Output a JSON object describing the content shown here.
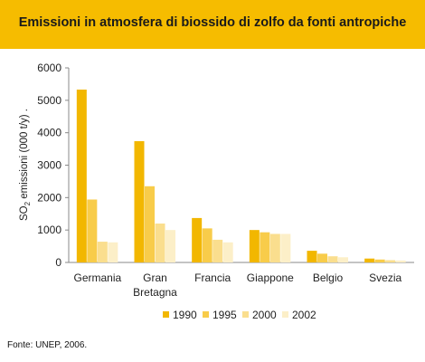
{
  "header": {
    "title": "Emissioni in atmosfera di biossido di zolfo da fonti antropiche",
    "bg_color": "#F6BC00"
  },
  "footer": {
    "source": "Fonte: UNEP, 2006."
  },
  "chart_data": {
    "type": "bar",
    "title": "",
    "ylabel": "SO2 emissioni (000 t/y) .",
    "ylabel_main": "SO",
    "ylabel_sub": "2",
    "ylabel_rest": " emissioni (000 t/y) .",
    "ylim": [
      0,
      6000
    ],
    "yticks": [
      0,
      1000,
      2000,
      3000,
      4000,
      5000,
      6000
    ],
    "ytick_labels": [
      "0",
      "1000",
      "2000",
      "3000",
      "4000",
      "5000",
      "6000"
    ],
    "grid": false,
    "legend_position": "bottom",
    "categories": [
      [
        "Germania"
      ],
      [
        "Gran",
        "Bretagna"
      ],
      [
        "Francia"
      ],
      [
        "Giappone"
      ],
      [
        "Belgio"
      ],
      [
        "Svezia"
      ]
    ],
    "series": [
      {
        "name": "1990",
        "color": "#F2B700",
        "values": [
          5330,
          3740,
          1370,
          1000,
          360,
          120
        ]
      },
      {
        "name": "1995",
        "color": "#F8CC4A",
        "values": [
          1940,
          2350,
          1050,
          930,
          270,
          90
        ]
      },
      {
        "name": "2000",
        "color": "#FADE8E",
        "values": [
          640,
          1200,
          700,
          880,
          190,
          70
        ]
      },
      {
        "name": "2002",
        "color": "#FCEFC8",
        "values": [
          620,
          1000,
          620,
          880,
          160,
          60
        ]
      }
    ]
  }
}
